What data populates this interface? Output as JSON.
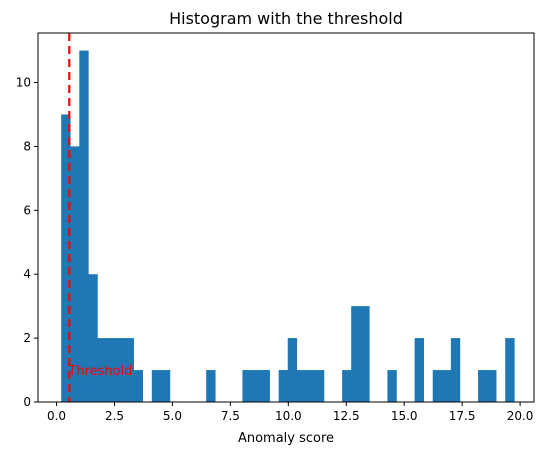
{
  "chart_data": {
    "type": "bar",
    "subtype": "histogram",
    "title": "Histogram with the threshold",
    "xlabel": "Anomaly score",
    "ylabel": "",
    "xlim": [
      -0.8,
      20.6
    ],
    "ylim": [
      0,
      11.55
    ],
    "xticks": [
      "0.0",
      "2.5",
      "5.0",
      "7.5",
      "10.0",
      "12.5",
      "15.0",
      "17.5",
      "20.0"
    ],
    "yticks": [
      "0",
      "2",
      "4",
      "6",
      "8",
      "10"
    ],
    "bin_width": 0.391,
    "bins": [
      {
        "x": 0.2,
        "count": 9
      },
      {
        "x": 0.591,
        "count": 8
      },
      {
        "x": 0.982,
        "count": 11
      },
      {
        "x": 1.373,
        "count": 4
      },
      {
        "x": 1.764,
        "count": 2
      },
      {
        "x": 2.155,
        "count": 2
      },
      {
        "x": 2.546,
        "count": 2
      },
      {
        "x": 2.937,
        "count": 2
      },
      {
        "x": 3.328,
        "count": 1
      },
      {
        "x": 4.11,
        "count": 1
      },
      {
        "x": 4.501,
        "count": 1
      },
      {
        "x": 6.456,
        "count": 1
      },
      {
        "x": 8.02,
        "count": 1
      },
      {
        "x": 8.411,
        "count": 1
      },
      {
        "x": 8.802,
        "count": 1
      },
      {
        "x": 9.584,
        "count": 1
      },
      {
        "x": 9.975,
        "count": 2
      },
      {
        "x": 10.366,
        "count": 1
      },
      {
        "x": 10.757,
        "count": 1
      },
      {
        "x": 11.148,
        "count": 1
      },
      {
        "x": 12.321,
        "count": 1
      },
      {
        "x": 12.712,
        "count": 3
      },
      {
        "x": 13.103,
        "count": 3
      },
      {
        "x": 14.276,
        "count": 1
      },
      {
        "x": 15.449,
        "count": 2
      },
      {
        "x": 16.231,
        "count": 1
      },
      {
        "x": 16.622,
        "count": 1
      },
      {
        "x": 17.013,
        "count": 2
      },
      {
        "x": 17.795,
        "count": 0
      },
      {
        "x": 18.186,
        "count": 1
      },
      {
        "x": 18.577,
        "count": 1
      },
      {
        "x": 19.359,
        "count": 2
      }
    ],
    "threshold": {
      "x": 0.55,
      "label": "Threshold",
      "color": "#ff0000"
    },
    "bar_color": "#1f77b4",
    "grid": false
  }
}
